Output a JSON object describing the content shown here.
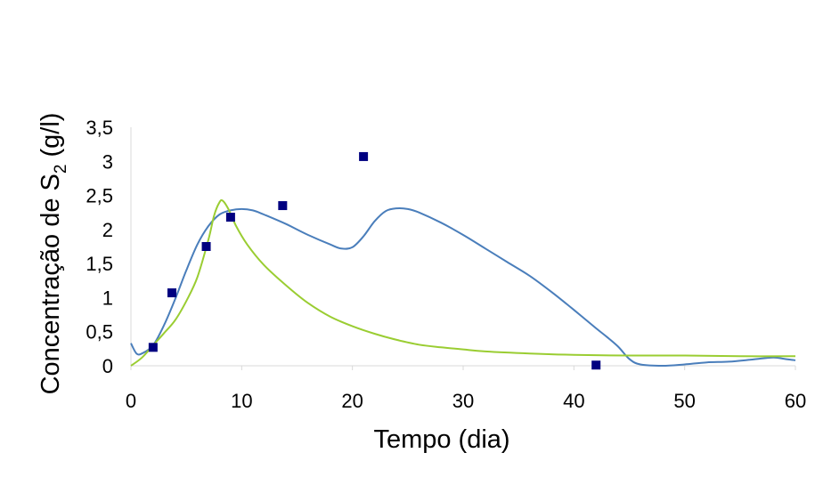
{
  "chart_data": {
    "type": "scatter",
    "xlabel": "Tempo (dia)",
    "ylabel": {
      "main": "Concentração de S",
      "subscript": "2",
      "suffix": " (g/l)"
    },
    "xlim": [
      0,
      60
    ],
    "ylim": [
      0,
      3.5
    ],
    "x_ticks": [
      0,
      10,
      20,
      30,
      40,
      50,
      60
    ],
    "y_ticks": [
      0,
      0.5,
      1,
      1.5,
      2,
      2.5,
      3,
      3.5
    ],
    "x_tick_labels": [
      "0",
      "10",
      "20",
      "30",
      "40",
      "50",
      "60"
    ],
    "y_tick_labels": [
      "0",
      "0,5",
      "1",
      "1,5",
      "2",
      "2,5",
      "3",
      "3,5"
    ],
    "grid": false,
    "series": [
      {
        "kind": "markers",
        "marker": "square",
        "color": "#000080",
        "x": [
          2,
          3.7,
          6.8,
          9,
          13.7,
          21,
          42
        ],
        "y": [
          0.27,
          1.07,
          1.75,
          2.18,
          2.35,
          3.07,
          0.01
        ]
      },
      {
        "kind": "line",
        "color": "#4a7ebb",
        "x": [
          0,
          0.5,
          1,
          2,
          3,
          4,
          5,
          6,
          7,
          8,
          9,
          10,
          11,
          12,
          14,
          16,
          18,
          19,
          20,
          21,
          22,
          23,
          24,
          25,
          26,
          28,
          30,
          32,
          34,
          36,
          38,
          40,
          42,
          43,
          44,
          45,
          46,
          48,
          50,
          52,
          54,
          56,
          58,
          59,
          60
        ],
        "y": [
          0.33,
          0.18,
          0.18,
          0.3,
          0.6,
          0.98,
          1.4,
          1.78,
          2.05,
          2.22,
          2.28,
          2.3,
          2.28,
          2.22,
          2.08,
          1.92,
          1.78,
          1.72,
          1.74,
          1.9,
          2.12,
          2.27,
          2.31,
          2.3,
          2.25,
          2.1,
          1.92,
          1.72,
          1.52,
          1.32,
          1.08,
          0.82,
          0.55,
          0.42,
          0.28,
          0.1,
          0.02,
          0.0,
          0.02,
          0.05,
          0.06,
          0.09,
          0.12,
          0.1,
          0.08
        ]
      },
      {
        "kind": "line",
        "color": "#9acd32",
        "x": [
          0,
          1,
          2,
          3,
          4,
          5,
          6,
          7,
          7.5,
          8,
          8.3,
          8.8,
          9.5,
          10.5,
          12,
          14,
          16,
          18,
          20,
          22,
          24,
          26,
          28,
          30,
          32,
          36,
          40,
          45,
          50,
          55,
          60
        ],
        "y": [
          0.0,
          0.12,
          0.3,
          0.48,
          0.67,
          0.95,
          1.3,
          1.85,
          2.2,
          2.4,
          2.42,
          2.3,
          2.05,
          1.78,
          1.48,
          1.18,
          0.92,
          0.72,
          0.58,
          0.47,
          0.38,
          0.31,
          0.27,
          0.24,
          0.21,
          0.18,
          0.16,
          0.15,
          0.15,
          0.14,
          0.14
        ]
      }
    ]
  }
}
